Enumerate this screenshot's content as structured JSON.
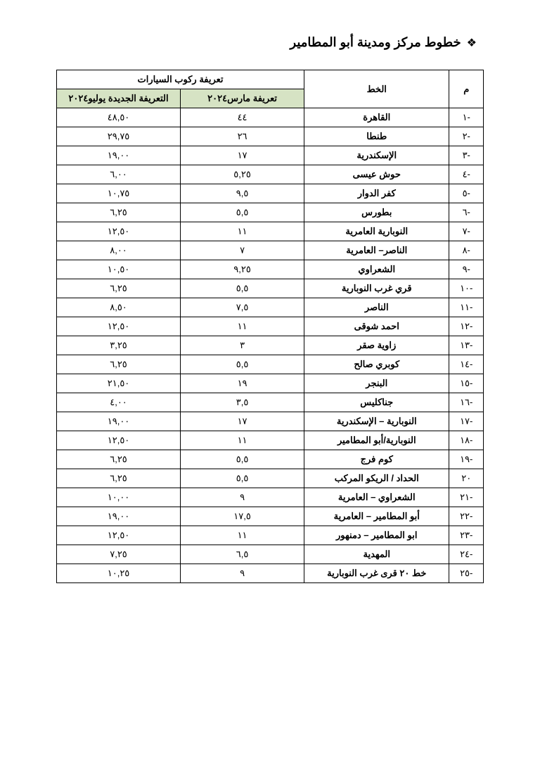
{
  "title": "خطوط مركز ومدينة أبو المطامير",
  "headers": {
    "idx": "م",
    "line": "الخط",
    "fare_group": "تعريفة ركوب السيارات",
    "march": "تعريفة مارس٢٠٢٤",
    "july": "التعريفة الجديدة يوليو٢٠٢٤"
  },
  "rows": [
    {
      "idx": "-١",
      "line": "القاهرة",
      "march": "٤٤",
      "july": "٤٨,٥٠"
    },
    {
      "idx": "-٢",
      "line": "طنطا",
      "march": "٢٦",
      "july": "٢٩,٧٥"
    },
    {
      "idx": "-٣",
      "line": "الإسكندرية",
      "march": "١٧",
      "july": "١٩,٠٠"
    },
    {
      "idx": "-٤",
      "line": "حوش عيسى",
      "march": "٥,٢٥",
      "july": "٦,٠٠"
    },
    {
      "idx": "-٥",
      "line": "كفر الدوار",
      "march": "٩,٥",
      "july": "١٠,٧٥"
    },
    {
      "idx": "-٦",
      "line": "بطورس",
      "march": "٥,٥",
      "july": "٦,٢٥"
    },
    {
      "idx": "-٧",
      "line": "النوبارية العامرية",
      "march": "١١",
      "july": "١٢,٥٠"
    },
    {
      "idx": "-٨",
      "line": "الناصر– العامرية",
      "march": "٧",
      "july": "٨,٠٠"
    },
    {
      "idx": "-٩",
      "line": "الشعراوي",
      "march": "٩,٢٥",
      "july": "١٠,٥٠"
    },
    {
      "idx": "-١٠",
      "line": "قري غرب النوبارية",
      "march": "٥,٥",
      "july": "٦,٢٥"
    },
    {
      "idx": "-١١",
      "line": "الناصر",
      "march": "٧,٥",
      "july": "٨,٥٠"
    },
    {
      "idx": "-١٢",
      "line": "احمد شوقى",
      "march": "١١",
      "july": "١٢,٥٠"
    },
    {
      "idx": "-١٣",
      "line": "زاوية صقر",
      "march": "٣",
      "july": "٣,٢٥"
    },
    {
      "idx": "-١٤",
      "line": "كوبري صالح",
      "march": "٥,٥",
      "july": "٦,٢٥"
    },
    {
      "idx": "-١٥",
      "line": "البنجر",
      "march": "١٩",
      "july": "٢١,٥٠"
    },
    {
      "idx": "-١٦",
      "line": "جناكليس",
      "march": "٣,٥",
      "july": "٤,٠٠"
    },
    {
      "idx": "-١٧",
      "line": "النوبارية – الإسكندرية",
      "march": "١٧",
      "july": "١٩,٠٠"
    },
    {
      "idx": "-١٨",
      "line": "النوبارية/أبو المطامير",
      "march": "١١",
      "july": "١٢,٥٠"
    },
    {
      "idx": "-١٩",
      "line": "كوم فرج",
      "march": "٥,٥",
      "july": "٦,٢٥"
    },
    {
      "idx": "٢٠",
      "line": "الحداد / الريكو المركب",
      "march": "٥,٥",
      "july": "٦,٢٥"
    },
    {
      "idx": "-٢١",
      "line": "الشعراوي – العامرية",
      "march": "٩",
      "july": "١٠,٠٠"
    },
    {
      "idx": "-٢٢",
      "line": "أبو المطامير – العامرية",
      "march": "١٧,٥",
      "july": "١٩,٠٠"
    },
    {
      "idx": "-٢٣",
      "line": "ابو المطامير – دمنهور",
      "march": "١١",
      "july": "١٢,٥٠"
    },
    {
      "idx": "-٢٤",
      "line": "المهدية",
      "march": "٦,٥",
      "july": "٧,٢٥"
    },
    {
      "idx": "-٢٥",
      "line": "خط ٢٠ قرى غرب النوبارية",
      "march": "٩",
      "july": "١٠,٢٥"
    }
  ]
}
